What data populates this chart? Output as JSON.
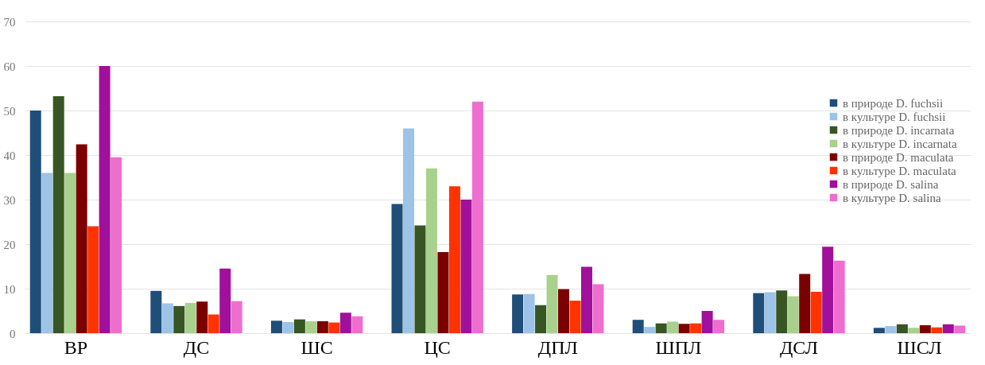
{
  "chart_data": {
    "type": "bar",
    "categories": [
      "ВР",
      "ДС",
      "ШС",
      "ЦС",
      "ДПЛ",
      "ШПЛ",
      "ДСЛ",
      "ШСЛ"
    ],
    "series": [
      {
        "name": "в природе  D. fuchsii",
        "color": "#1f4e79",
        "values": [
          50,
          9.5,
          2.8,
          29,
          8.7,
          3,
          9,
          1.2
        ]
      },
      {
        "name": "в культуре  D. fuchsii",
        "color": "#9dc3e6",
        "values": [
          36,
          6.7,
          2.5,
          46,
          8.8,
          1.4,
          9.2,
          1.6
        ]
      },
      {
        "name": "в природе  D. incarnata",
        "color": "#375623",
        "values": [
          53.2,
          6.1,
          3.1,
          24.2,
          6.3,
          2.2,
          9.6,
          2
        ]
      },
      {
        "name": "в культуре  D. incarnata",
        "color": "#a9d18e",
        "values": [
          36,
          6.8,
          2.7,
          37,
          13.1,
          2.6,
          8.3,
          1.2
        ]
      },
      {
        "name": "в природе  D. maculata",
        "color": "#7b0000",
        "values": [
          42.4,
          7.1,
          2.7,
          18.2,
          9.9,
          2.1,
          13.3,
          1.8
        ]
      },
      {
        "name": "в культуре  D. maculata",
        "color": "#ff3300",
        "values": [
          24,
          4.2,
          2.4,
          33,
          7.3,
          2.2,
          9.3,
          1.3
        ]
      },
      {
        "name": "в природе  D. salina",
        "color": "#a0109a",
        "values": [
          60,
          14.5,
          4.6,
          30,
          14.9,
          5,
          19.4,
          2
        ]
      },
      {
        "name": "в культуре  D. salina",
        "color": "#ee6ecf",
        "values": [
          39.5,
          7.2,
          3.8,
          52,
          11,
          3,
          16.3,
          1.7
        ]
      }
    ],
    "ylim": [
      0,
      70
    ],
    "yticks": [
      0,
      10,
      20,
      30,
      40,
      50,
      60,
      70
    ],
    "grid": "y",
    "legend": "right"
  }
}
